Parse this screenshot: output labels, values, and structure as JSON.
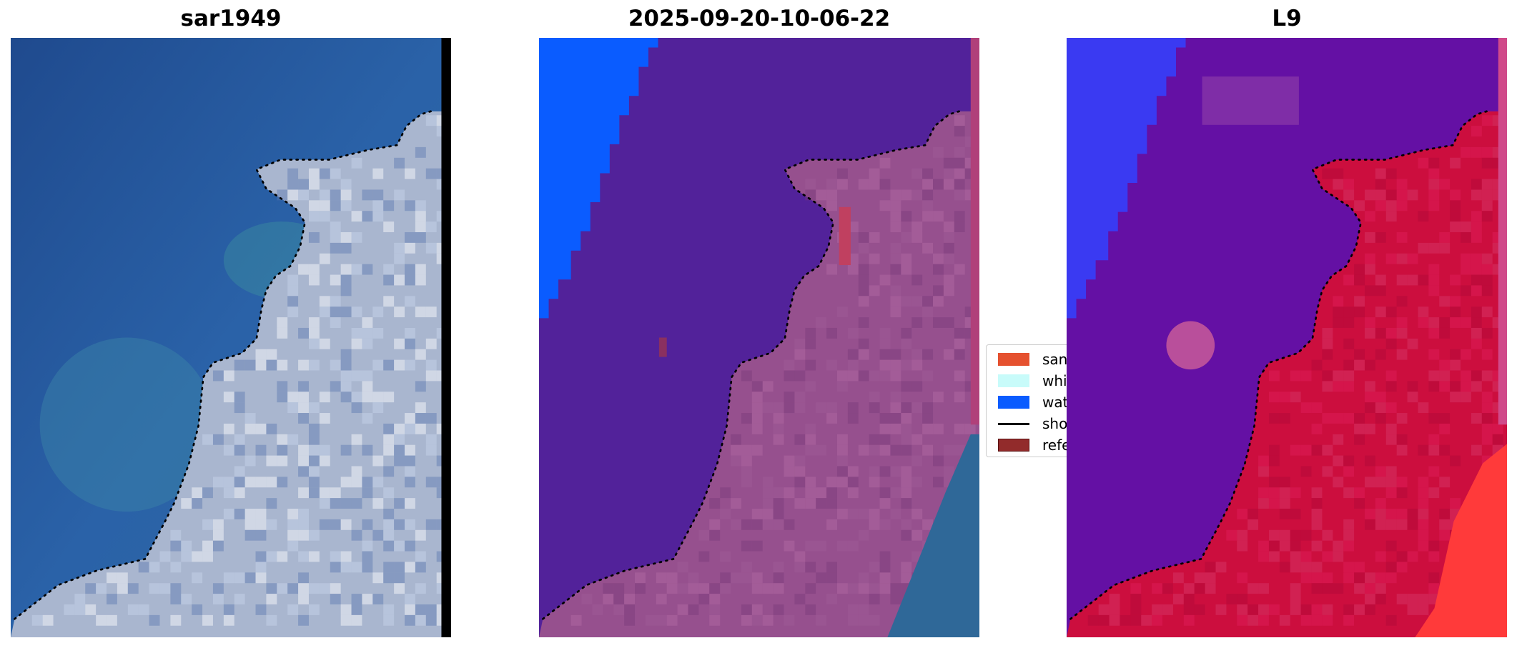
{
  "panels": [
    {
      "title": "sar1949"
    },
    {
      "title": "2025-09-20-10-06-22"
    },
    {
      "title": "L9"
    }
  ],
  "legend": {
    "items": [
      {
        "label": "sand",
        "color": "#e5512f",
        "kind": "patch"
      },
      {
        "label": "white",
        "color": "#c8fbfa",
        "kind": "patch"
      },
      {
        "label": "wate",
        "color": "#0a5cff",
        "kind": "patch"
      },
      {
        "label": "shore",
        "color": "#000000",
        "kind": "line"
      },
      {
        "label": "refer",
        "color": "#922b2b",
        "kind": "patch"
      }
    ]
  },
  "colors": {
    "ocean_rgb": "#2a5896",
    "land_rgb": "#a9b6cf",
    "class_water": "#0a5cff",
    "class_other": "#52229a",
    "class_land": "#96508e",
    "l9_water": "#3a3af2",
    "l9_other": "#6410a4",
    "l9_land": "#cc0e3e",
    "shoreline": "#000000"
  }
}
